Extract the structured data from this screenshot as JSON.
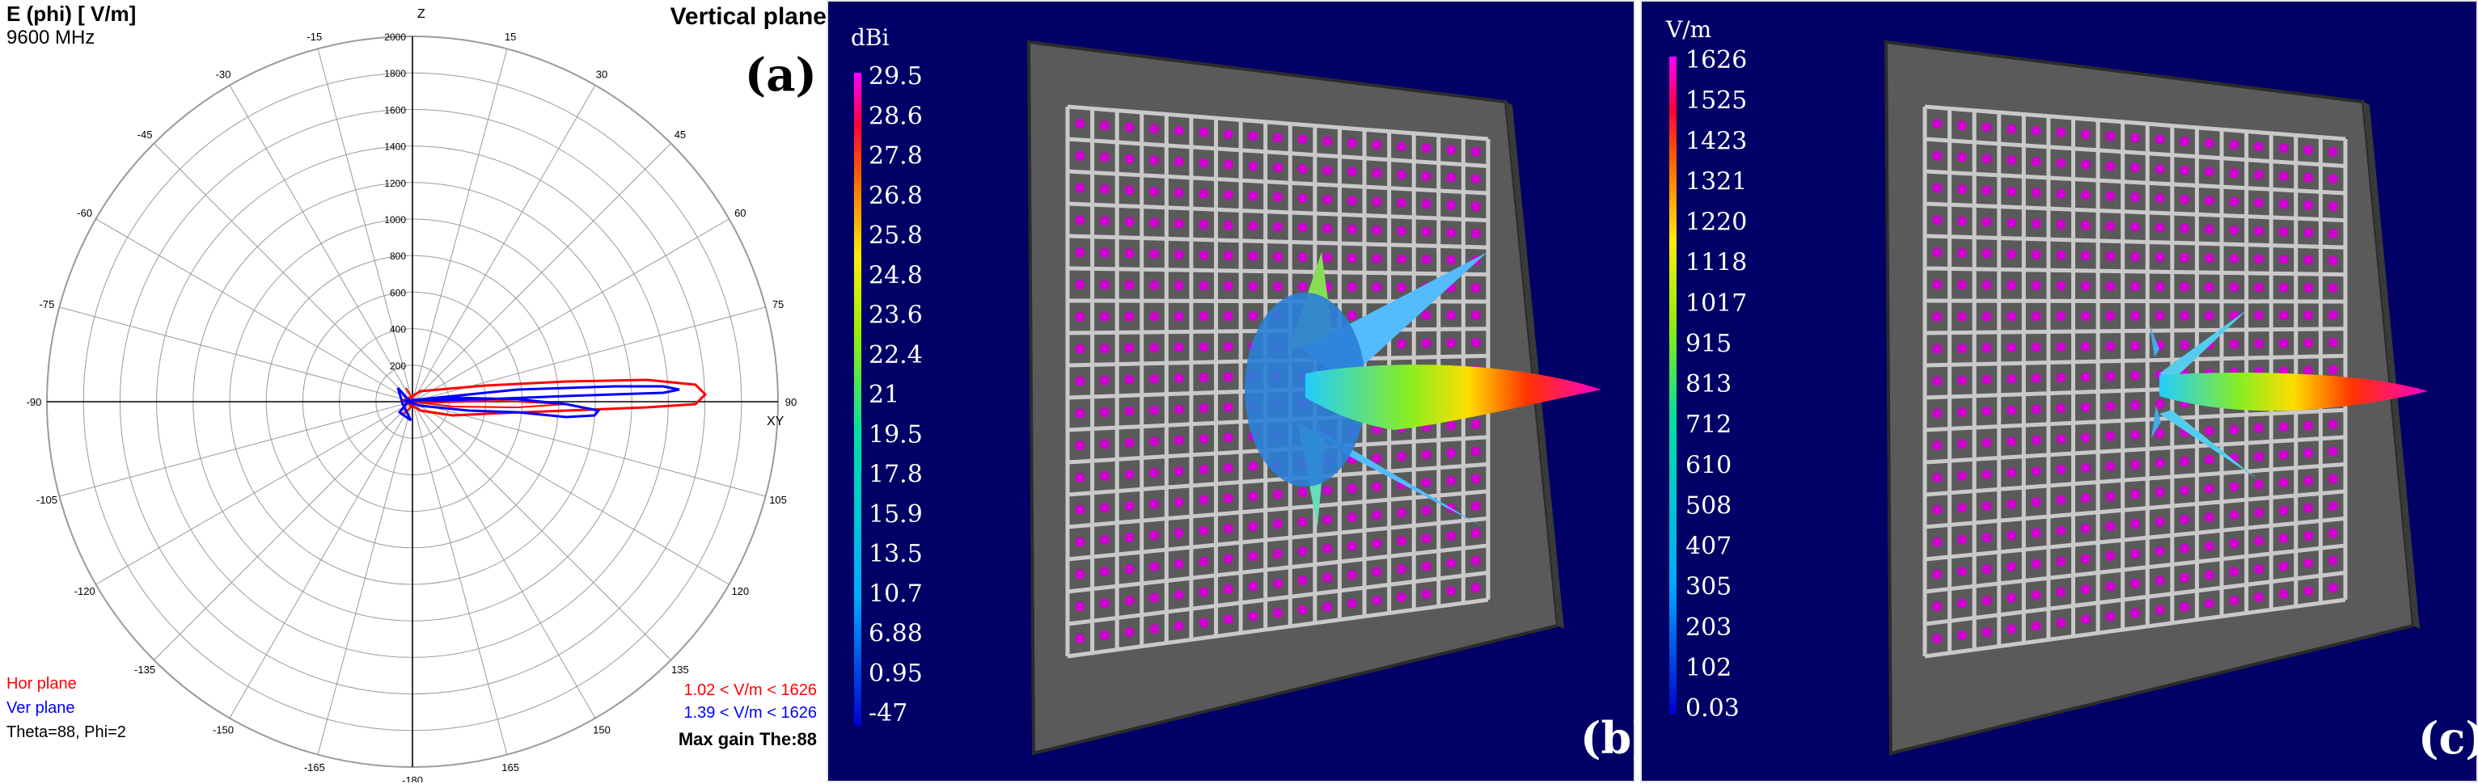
{
  "panel_a": {
    "title": "E (phi) [ V/m]",
    "frequency": "9600 MHz",
    "plane": "Vertical plane",
    "label": "(a)",
    "axis_top": "Z",
    "axis_right": "XY",
    "angles": [
      "-15",
      "15",
      "-30",
      "30",
      "-45",
      "45",
      "-60",
      "60",
      "-75",
      "75",
      "-90",
      "90",
      "-105",
      "105",
      "-120",
      "120",
      "-135",
      "135",
      "-150",
      "150",
      "-165",
      "165",
      "-180"
    ],
    "radial": [
      "2000",
      "1800",
      "1600",
      "1400",
      "1200",
      "1000",
      "800",
      "600",
      "400",
      "200",
      "0"
    ],
    "legend": {
      "hor": "Hor plane",
      "ver": "Ver plane",
      "theta_phi": "Theta=88, Phi=2"
    },
    "range_hor": "1.02 <  V/m < 1626",
    "range_ver": "1.39 <  V/m < 1626",
    "max_gain": "Max gain The:88",
    "colors": {
      "hor": "#ff0000",
      "ver": "#0000ff"
    }
  },
  "panel_b": {
    "unit": "dBi",
    "label": "(b)",
    "scale": [
      "29.5",
      "28.6",
      "27.8",
      "26.8",
      "25.8",
      "24.8",
      "23.6",
      "22.4",
      "21",
      "19.5",
      "17.8",
      "15.9",
      "13.5",
      "10.7",
      "6.88",
      "0.95",
      "-47"
    ]
  },
  "panel_c": {
    "unit": "V/m",
    "label": "(c)",
    "scale": [
      "1626",
      "1525",
      "1423",
      "1321",
      "1220",
      "1118",
      "1017",
      "915",
      "813",
      "712",
      "610",
      "508",
      "407",
      "305",
      "203",
      "102",
      "0.03"
    ]
  }
}
